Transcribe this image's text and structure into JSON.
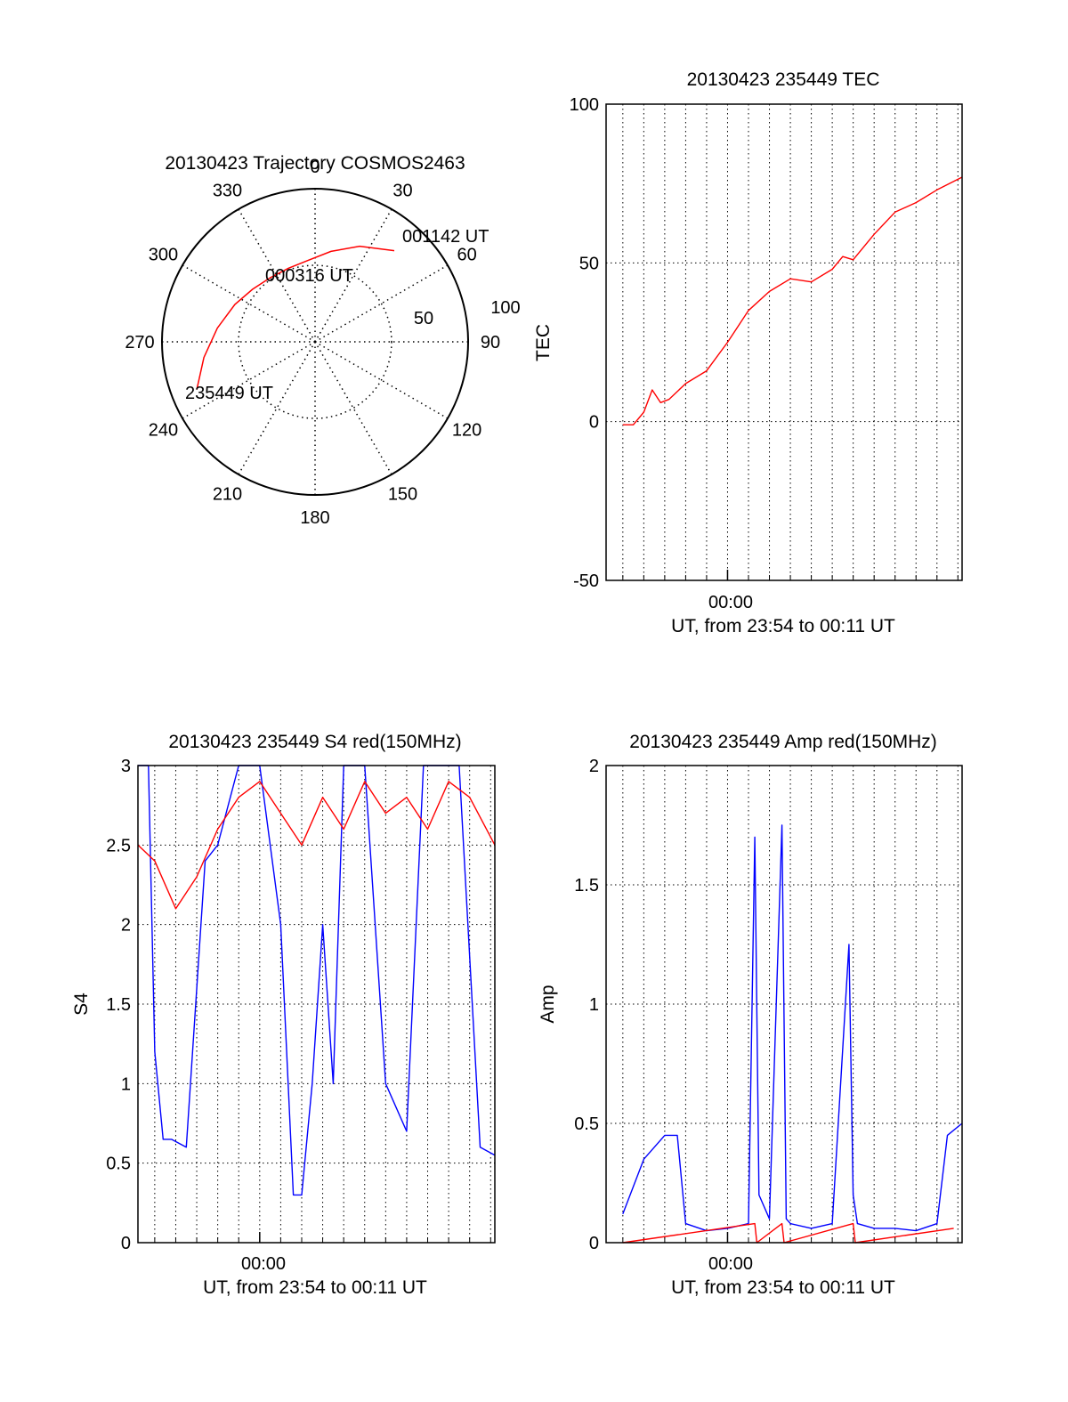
{
  "colors": {
    "primary": "#ff0000",
    "secondary": "#0000ff",
    "axis": "#000000",
    "grid": "#000000"
  },
  "chart_data": [
    {
      "type": "polar-trajectory",
      "title": "20130423 Trajectory COSMOS2463",
      "angle_labels": [
        "0",
        "30",
        "60",
        "90",
        "120",
        "150",
        "180",
        "210",
        "240",
        "270",
        "300",
        "330"
      ],
      "radial_labels": [
        "50",
        "100"
      ],
      "grid": true,
      "trajectory": [
        {
          "azimuth": 248,
          "elevation": 15
        },
        {
          "azimuth": 262,
          "elevation": 24
        },
        {
          "azimuth": 278,
          "elevation": 32
        },
        {
          "azimuth": 295,
          "elevation": 38
        },
        {
          "azimuth": 310,
          "elevation": 42
        },
        {
          "azimuth": 325,
          "elevation": 44
        },
        {
          "azimuth": 340,
          "elevation": 44
        },
        {
          "azimuth": 355,
          "elevation": 42
        },
        {
          "azimuth": 10,
          "elevation": 36
        },
        {
          "azimuth": 25,
          "elevation": 28
        },
        {
          "azimuth": 41,
          "elevation": 19
        }
      ],
      "annotations": [
        {
          "text": "235449 UT",
          "azimuth": 248,
          "elevation": 15
        },
        {
          "text": "000316 UT",
          "azimuth": 330,
          "elevation": 44
        },
        {
          "text": "001142 UT",
          "azimuth": 41,
          "elevation": 19
        }
      ]
    },
    {
      "type": "line",
      "title": "20130423 235449 TEC",
      "xlabel": "UT, from 23:54 to 00:11 UT",
      "ylabel": "TEC",
      "ylim": [
        -50,
        100
      ],
      "yticks": [
        "-50",
        "0",
        "50",
        "100"
      ],
      "xticks": [
        "00:00"
      ],
      "xrange_min": [
        -5.8,
        11.2
      ],
      "xtick_min": 0,
      "grid": true,
      "series": [
        {
          "color": "#ff0000",
          "x": [
            -5,
            -4.5,
            -4,
            -3.6,
            -3.2,
            -2.8,
            -2,
            -1,
            0,
            0.5,
            1,
            2,
            3,
            4,
            5,
            5.5,
            6,
            7,
            8,
            9,
            10,
            11.2
          ],
          "y": [
            -1,
            -1,
            3,
            10,
            6,
            7,
            12,
            16,
            25,
            30,
            35,
            41,
            45,
            44,
            48,
            52,
            51,
            59,
            66,
            69,
            73,
            77
          ]
        }
      ]
    },
    {
      "type": "line",
      "title": "20130423 235449 S4 red(150MHz)",
      "xlabel": "UT, from 23:54 to 00:11 UT",
      "ylabel": "S4",
      "ylim": [
        0,
        3
      ],
      "yticks": [
        "0",
        "0.5",
        "1",
        "1.5",
        "2",
        "2.5",
        "3"
      ],
      "xticks": [
        "00:00"
      ],
      "xrange_min": [
        -5.8,
        11.2
      ],
      "xtick_min": 0,
      "grid": true,
      "series": [
        {
          "color": "#0000ff",
          "x": [
            -5.8,
            -5.3,
            -5,
            -4.6,
            -4.2,
            -3.5,
            -2.6,
            -2,
            -1,
            0,
            1,
            1.6,
            2,
            2.5,
            3,
            3.5,
            4,
            5,
            6,
            7,
            7.8,
            8.5,
            9.5,
            10.5,
            11.2
          ],
          "y": [
            3,
            3,
            1.2,
            0.65,
            0.65,
            0.6,
            2.4,
            2.5,
            3,
            3,
            2.0,
            0.3,
            0.3,
            1.0,
            2.0,
            1.0,
            3,
            3,
            1.0,
            0.7,
            3,
            3,
            3,
            0.6,
            0.55
          ]
        },
        {
          "color": "#ff0000",
          "x": [
            -5.8,
            -5,
            -4,
            -3,
            -2,
            -1,
            0,
            1,
            2,
            3,
            4,
            5,
            6,
            7,
            8,
            9,
            10,
            11.2
          ],
          "y": [
            2.5,
            2.4,
            2.1,
            2.3,
            2.6,
            2.8,
            2.9,
            2.7,
            2.5,
            2.8,
            2.6,
            2.9,
            2.7,
            2.8,
            2.6,
            2.9,
            2.8,
            2.5
          ]
        }
      ]
    },
    {
      "type": "line",
      "title": "20130423 235449 Amp red(150MHz)",
      "xlabel": "UT, from 23:54 to 00:11 UT",
      "ylabel": "Amp",
      "ylim": [
        0,
        2
      ],
      "yticks": [
        "0",
        "0.5",
        "1",
        "1.5",
        "2"
      ],
      "xticks": [
        "00:00"
      ],
      "xrange_min": [
        -5.8,
        11.2
      ],
      "xtick_min": 0,
      "grid": true,
      "series": [
        {
          "color": "#0000ff",
          "x": [
            -5,
            -4,
            -3,
            -2.4,
            -2,
            -1,
            0,
            1,
            1.3,
            1.5,
            2,
            2.6,
            2.8,
            3,
            4,
            5,
            5.8,
            6,
            6.2,
            7,
            8,
            9,
            10,
            10.5,
            11.2
          ],
          "y": [
            0.12,
            0.35,
            0.45,
            0.45,
            0.08,
            0.05,
            0.06,
            0.08,
            1.7,
            0.2,
            0.1,
            1.75,
            0.1,
            0.08,
            0.06,
            0.08,
            1.25,
            0.2,
            0.08,
            0.06,
            0.06,
            0.05,
            0.08,
            0.45,
            0.5
          ]
        },
        {
          "color": "#ff0000",
          "x": [
            -5,
            1.3,
            1.4,
            2.6,
            2.7,
            6,
            6.1,
            10.8
          ],
          "y": [
            0.0,
            0.08,
            0.0,
            0.08,
            0.0,
            0.08,
            0.0,
            0.06
          ]
        }
      ]
    }
  ]
}
